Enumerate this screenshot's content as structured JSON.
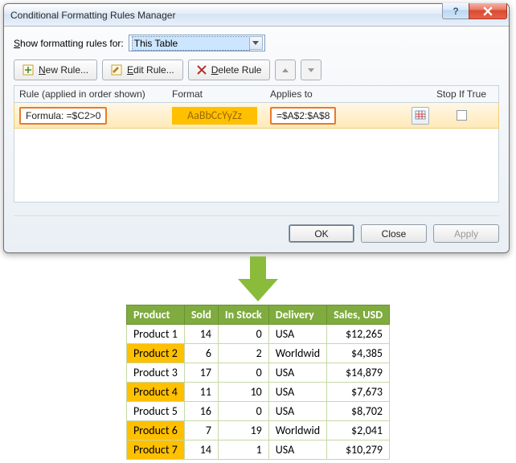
{
  "dialog": {
    "title": "Conditional Formatting Rules Manager",
    "show_label_pre": "S",
    "show_label_post": "how formatting rules for:",
    "scope_selected": "This Table",
    "toolbar": {
      "new_pre": "N",
      "new_post": "ew Rule...",
      "edit_pre": "E",
      "edit_post": "dit Rule...",
      "delete_pre": "D",
      "delete_post": "elete Rule"
    },
    "headers": {
      "rule": "Rule (applied in order shown)",
      "format": "Format",
      "applies": "Applies to",
      "stop": "Stop If True"
    },
    "rule": {
      "label": "Formula: =$C2>0",
      "format_sample": "AaBbCcYyZz",
      "format_bg": "#ffc000",
      "format_fg": "#9c6a00",
      "applies": "=$A$2:$A$8",
      "highlight_border": "#e87a2a"
    },
    "buttons": {
      "ok": "OK",
      "close": "Close",
      "apply": "Apply"
    }
  },
  "arrow_color": "#8bbb3b",
  "table": {
    "header_bg": "#7fab3f",
    "highlight_bg": "#ffc000",
    "columns": [
      "Product",
      "Sold",
      "In Stock",
      "Delivery",
      "Sales,  USD"
    ],
    "rows": [
      {
        "product": "Product 1",
        "sold": 14,
        "stock": 0,
        "delivery": "USA",
        "sales": "$12,265",
        "hl": false
      },
      {
        "product": "Product 2",
        "sold": 6,
        "stock": 2,
        "delivery": "Worldwid",
        "sales": "$4,385",
        "hl": true
      },
      {
        "product": "Product 3",
        "sold": 17,
        "stock": 0,
        "delivery": "USA",
        "sales": "$14,879",
        "hl": false
      },
      {
        "product": "Product 4",
        "sold": 11,
        "stock": 10,
        "delivery": "USA",
        "sales": "$7,673",
        "hl": true
      },
      {
        "product": "Product 5",
        "sold": 16,
        "stock": 0,
        "delivery": "USA",
        "sales": "$8,702",
        "hl": false
      },
      {
        "product": "Product 6",
        "sold": 7,
        "stock": 19,
        "delivery": "Worldwid",
        "sales": "$2,041",
        "hl": true
      },
      {
        "product": "Product 7",
        "sold": 14,
        "stock": 1,
        "delivery": "USA",
        "sales": "$10,279",
        "hl": true
      }
    ]
  }
}
